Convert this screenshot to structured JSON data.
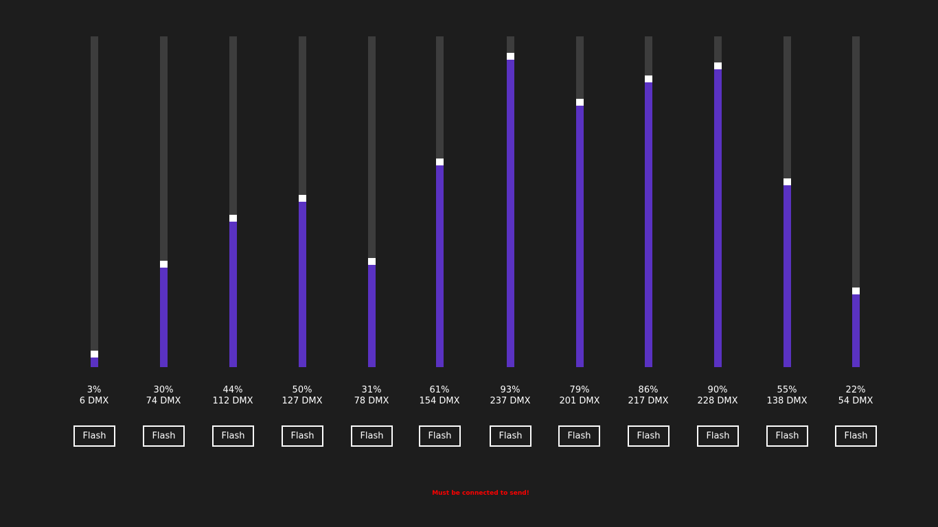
{
  "colors": {
    "background": "#1d1d1d",
    "track": "#3d3d3d",
    "fill": "#5a32c2",
    "thumb": "#ffffff",
    "status": "#ff0000"
  },
  "channels": [
    {
      "level": 0.03,
      "percent_label": "3%",
      "dmx_label": "6 DMX",
      "flash_label": "Flash"
    },
    {
      "level": 0.3,
      "percent_label": "30%",
      "dmx_label": "74 DMX",
      "flash_label": "Flash"
    },
    {
      "level": 0.44,
      "percent_label": "44%",
      "dmx_label": "112 DMX",
      "flash_label": "Flash"
    },
    {
      "level": 0.5,
      "percent_label": "50%",
      "dmx_label": "127 DMX",
      "flash_label": "Flash"
    },
    {
      "level": 0.31,
      "percent_label": "31%",
      "dmx_label": "78 DMX",
      "flash_label": "Flash"
    },
    {
      "level": 0.61,
      "percent_label": "61%",
      "dmx_label": "154 DMX",
      "flash_label": "Flash"
    },
    {
      "level": 0.93,
      "percent_label": "93%",
      "dmx_label": "237 DMX",
      "flash_label": "Flash"
    },
    {
      "level": 0.79,
      "percent_label": "79%",
      "dmx_label": "201 DMX",
      "flash_label": "Flash"
    },
    {
      "level": 0.86,
      "percent_label": "86%",
      "dmx_label": "217 DMX",
      "flash_label": "Flash"
    },
    {
      "level": 0.9,
      "percent_label": "90%",
      "dmx_label": "228 DMX",
      "flash_label": "Flash"
    },
    {
      "level": 0.55,
      "percent_label": "55%",
      "dmx_label": "138 DMX",
      "flash_label": "Flash"
    },
    {
      "level": 0.22,
      "percent_label": "22%",
      "dmx_label": "54 DMX",
      "flash_label": "Flash"
    }
  ],
  "status": {
    "message": "Must be connected to send!"
  }
}
